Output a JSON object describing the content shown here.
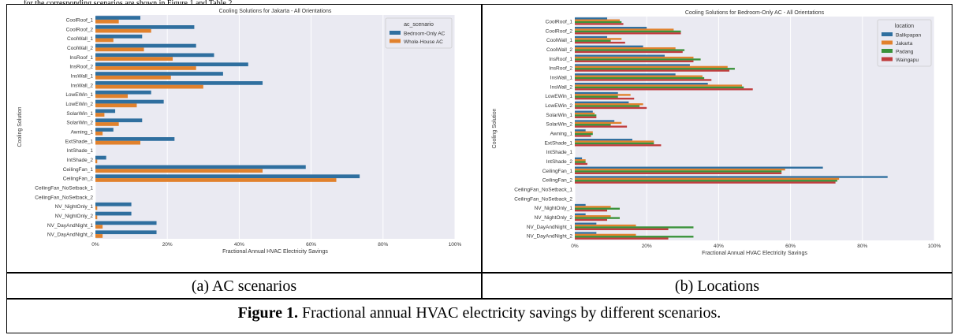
{
  "page_top_text": "for the corresponding scenarios are shown in Figure 1 and Table 2.",
  "panel_a_label": "(a) AC scenarios",
  "panel_b_label": "(b) Locations",
  "caption_bold": "Figure 1.",
  "caption_text": " Fractional annual HVAC electricity savings by different scenarios.",
  "chart_data": [
    {
      "type": "bar",
      "orientation": "horizontal",
      "title": "Cooling Solutions for Jakarta - All Orientations",
      "xlabel": "Fractional Annual HVAC Electricity Savings",
      "ylabel": "Cooling Solution",
      "xlim": [
        0,
        1
      ],
      "x_ticks": [
        "0%",
        "20%",
        "40%",
        "60%",
        "80%",
        "100%"
      ],
      "legend_title": "ac_scenario",
      "legend_position": "top-right",
      "grid": true,
      "background": "#eaeaf2",
      "categories": [
        "CoolRoof_1",
        "CoolRoof_2",
        "CoolWall_1",
        "CoolWall_2",
        "InsRoof_1",
        "InsRoof_2",
        "InsWall_1",
        "InsWall_2",
        "LowEWin_1",
        "LowEWin_2",
        "SolarWin_1",
        "SolarWin_2",
        "Awning_1",
        "ExtShade_1",
        "IntShade_1",
        "IntShade_2",
        "CeilingFan_1",
        "CeilingFan_2",
        "CeilingFan_NoSetback_1",
        "CeilingFan_NoSetback_2",
        "NV_NightOnly_1",
        "NV_NightOnly_2",
        "NV_DayAndNight_1",
        "NV_DayAndNight_2"
      ],
      "series": [
        {
          "name": "Bedroom-Only AC",
          "color": "#2f6f9f",
          "values": [
            0.125,
            0.275,
            0.13,
            0.28,
            0.33,
            0.425,
            0.355,
            0.465,
            0.155,
            0.19,
            0.055,
            0.13,
            0.05,
            0.22,
            0.0,
            0.03,
            0.585,
            0.735,
            0.0,
            0.0,
            0.1,
            0.1,
            0.17,
            0.17
          ]
        },
        {
          "name": "Whole-House AC",
          "color": "#e1812c",
          "values": [
            0.065,
            0.155,
            0.05,
            0.135,
            0.215,
            0.28,
            0.21,
            0.3,
            0.09,
            0.115,
            0.025,
            0.065,
            0.02,
            0.125,
            0.0,
            0.005,
            0.465,
            0.67,
            0.0,
            0.0,
            0.005,
            0.005,
            0.02,
            0.02
          ]
        }
      ]
    },
    {
      "type": "bar",
      "orientation": "horizontal",
      "title": "Cooling Solutions for Bedroom-Only AC - All Orientations",
      "xlabel": "Fractional Annual HVAC Electricity Savings",
      "ylabel": "Cooling Solution",
      "xlim": [
        0,
        1
      ],
      "x_ticks": [
        "0%",
        "20%",
        "40%",
        "60%",
        "80%",
        "100%"
      ],
      "legend_title": "location",
      "legend_position": "top-right",
      "grid": true,
      "background": "#eaeaf2",
      "categories": [
        "CoolRoof_1",
        "CoolRoof_2",
        "CoolWall_1",
        "CoolWall_2",
        "InsRoof_1",
        "InsRoof_2",
        "InsWall_1",
        "InsWall_2",
        "LowEWin_1",
        "LowEWin_2",
        "SolarWin_1",
        "SolarWin_2",
        "Awning_1",
        "ExtShade_1",
        "IntShade_1",
        "IntShade_2",
        "CeilingFan_1",
        "CeilingFan_2",
        "CeilingFan_NoSetback_1",
        "CeilingFan_NoSetback_2",
        "NV_NightOnly_1",
        "NV_NightOnly_2",
        "NV_DayAndNight_1",
        "NV_DayAndNight_2"
      ],
      "series": [
        {
          "name": "Balikpapan",
          "color": "#2f6f9f",
          "values": [
            0.09,
            0.2,
            0.09,
            0.19,
            0.25,
            0.32,
            0.28,
            0.37,
            0.12,
            0.15,
            0.05,
            0.11,
            0.03,
            0.16,
            0.0,
            0.02,
            0.69,
            0.87,
            0.0,
            0.0,
            0.03,
            0.03,
            0.06,
            0.06
          ]
        },
        {
          "name": "Jakarta",
          "color": "#e1812c",
          "values": [
            0.125,
            0.275,
            0.13,
            0.28,
            0.33,
            0.425,
            0.355,
            0.465,
            0.155,
            0.19,
            0.055,
            0.13,
            0.05,
            0.22,
            0.0,
            0.03,
            0.585,
            0.735,
            0.0,
            0.0,
            0.1,
            0.1,
            0.17,
            0.17
          ]
        },
        {
          "name": "Padang",
          "color": "#3a923a",
          "values": [
            0.13,
            0.295,
            0.1,
            0.305,
            0.35,
            0.445,
            0.36,
            0.47,
            0.12,
            0.18,
            0.06,
            0.1,
            0.05,
            0.22,
            0.0,
            0.03,
            0.575,
            0.73,
            0.0,
            0.0,
            0.125,
            0.125,
            0.33,
            0.33
          ]
        },
        {
          "name": "Waingapu",
          "color": "#c03d3e",
          "values": [
            0.135,
            0.295,
            0.14,
            0.3,
            0.33,
            0.43,
            0.38,
            0.495,
            0.165,
            0.2,
            0.06,
            0.145,
            0.045,
            0.24,
            0.0,
            0.035,
            0.575,
            0.725,
            0.0,
            0.0,
            0.09,
            0.09,
            0.26,
            0.26
          ]
        }
      ]
    }
  ]
}
